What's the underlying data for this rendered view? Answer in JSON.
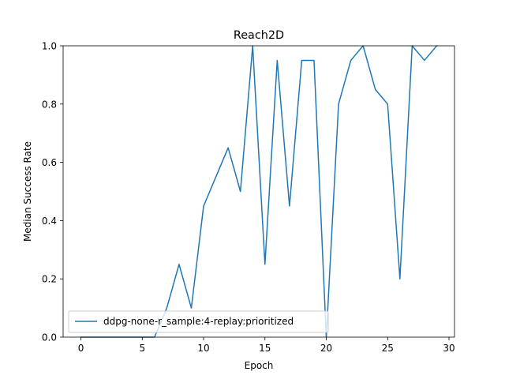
{
  "chart_data": {
    "type": "line",
    "title": "Reach2D",
    "xlabel": "Epoch",
    "ylabel": "Median Success Rate",
    "xlim": [
      -1.45,
      30.45
    ],
    "ylim": [
      0.0,
      1.0
    ],
    "xticks": [
      0,
      5,
      10,
      15,
      20,
      25,
      30
    ],
    "xtick_labels": [
      "0",
      "5",
      "10",
      "15",
      "20",
      "25",
      "30"
    ],
    "yticks": [
      0.0,
      0.2,
      0.4,
      0.6,
      0.8,
      1.0
    ],
    "ytick_labels": [
      "0.0",
      "0.2",
      "0.4",
      "0.6",
      "0.8",
      "1.0"
    ],
    "grid": false,
    "legend_position": "bottom-left",
    "series": [
      {
        "name": "ddpg-none-r_sample:4-replay:prioritized",
        "color": "#1f77b4",
        "x": [
          0,
          1,
          2,
          3,
          4,
          5,
          6,
          7,
          8,
          9,
          10,
          11,
          12,
          13,
          14,
          15,
          16,
          17,
          18,
          19,
          20,
          21,
          22,
          23,
          24,
          25,
          26,
          27,
          28,
          29
        ],
        "y": [
          0.0,
          0.0,
          0.0,
          0.0,
          0.0,
          0.0,
          0.0,
          0.1,
          0.25,
          0.1,
          0.45,
          0.55,
          0.65,
          0.5,
          1.0,
          0.25,
          0.95,
          0.45,
          0.95,
          0.95,
          0.0,
          0.8,
          0.95,
          1.0,
          0.85,
          0.8,
          0.2,
          1.0,
          0.95,
          1.0
        ]
      }
    ]
  }
}
